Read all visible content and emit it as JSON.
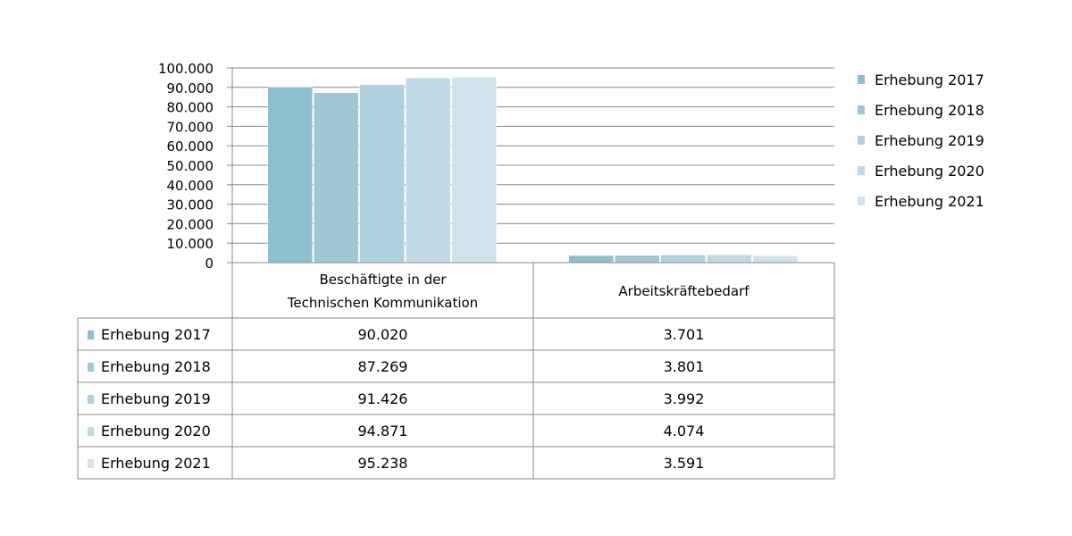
{
  "chart_data": {
    "type": "bar",
    "categories": [
      [
        "Beschäftigte in der",
        "Technischen Kommunikation"
      ],
      [
        "Arbeitskräftebedarf"
      ]
    ],
    "series": [
      {
        "name": "Erhebung 2017",
        "color": "#8ebfcf",
        "values": [
          90020,
          3701
        ],
        "labels": [
          "90.020",
          "3.701"
        ]
      },
      {
        "name": "Erhebung 2018",
        "color": "#9ec8d6",
        "values": [
          87269,
          3801
        ],
        "labels": [
          "87.269",
          "3.801"
        ]
      },
      {
        "name": "Erhebung 2019",
        "color": "#afd1dd",
        "values": [
          91426,
          3992
        ],
        "labels": [
          "91.426",
          "3.992"
        ]
      },
      {
        "name": "Erhebung 2020",
        "color": "#bfdae4",
        "values": [
          94871,
          4074
        ],
        "labels": [
          "94.871",
          "4.074"
        ]
      },
      {
        "name": "Erhebung 2021",
        "color": "#cfe3ea",
        "values": [
          95238,
          3591
        ],
        "labels": [
          "95.238",
          "3.591"
        ]
      }
    ],
    "ylim": [
      0,
      100000
    ],
    "yticks": [
      0,
      10000,
      20000,
      30000,
      40000,
      50000,
      60000,
      70000,
      80000,
      90000,
      100000
    ],
    "ytick_labels": [
      "0",
      "10.000",
      "20.000",
      "30.000",
      "40.000",
      "50.000",
      "60.000",
      "70.000",
      "80.000",
      "90.000",
      "100.000"
    ],
    "grid": true,
    "legend": "right",
    "data_table": true
  }
}
